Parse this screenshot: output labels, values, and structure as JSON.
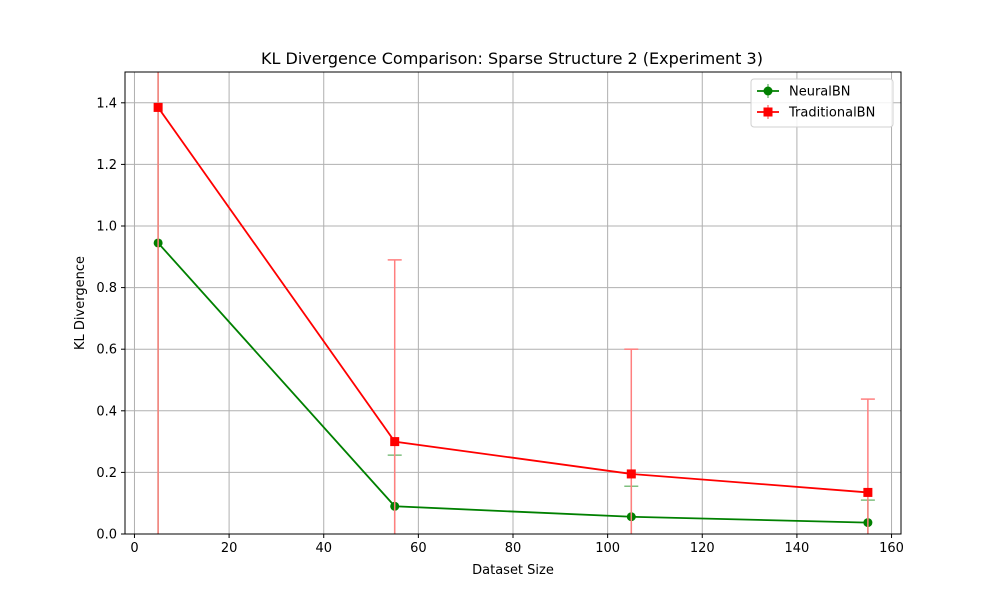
{
  "chart_data": {
    "type": "line",
    "title": "KL Divergence Comparison: Sparse Structure 2 (Experiment 3)",
    "xlabel": "Dataset Size",
    "ylabel": "KL Divergence",
    "xlim": [
      -2,
      162
    ],
    "ylim": [
      0,
      1.5
    ],
    "xticks": [
      0,
      20,
      40,
      60,
      80,
      100,
      120,
      140,
      160
    ],
    "yticks": [
      0.0,
      0.2,
      0.4,
      0.6,
      0.8,
      1.0,
      1.2,
      1.4
    ],
    "xtick_labels": [
      "0",
      "20",
      "40",
      "60",
      "80",
      "100",
      "120",
      "140",
      "160"
    ],
    "ytick_labels": [
      "0.0",
      "0.2",
      "0.4",
      "0.6",
      "0.8",
      "1.0",
      "1.2",
      "1.4"
    ],
    "grid": true,
    "legend_position": "top-right",
    "x": [
      5,
      55,
      105,
      155
    ],
    "series": [
      {
        "name": "NeuralBN",
        "color": "#008000",
        "marker": "circle",
        "values": [
          0.945,
          0.09,
          0.056,
          0.037
        ],
        "err_low": [
          0.945,
          0.09,
          0.056,
          0.037
        ],
        "err_high": [
          1.5,
          0.256,
          0.155,
          0.11
        ]
      },
      {
        "name": "TraditionalBN",
        "color": "#ff0000",
        "marker": "square",
        "values": [
          1.385,
          0.3,
          0.195,
          0.135
        ],
        "err_low": [
          1.385,
          0.3,
          0.195,
          0.135
        ],
        "err_high": [
          1.5,
          0.89,
          0.6,
          0.438
        ]
      }
    ]
  }
}
